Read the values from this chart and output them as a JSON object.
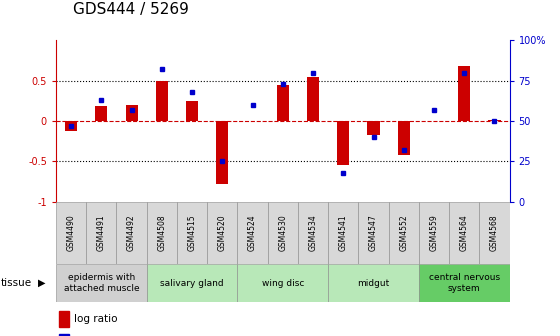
{
  "title": "GDS444 / 5269",
  "samples": [
    "GSM4490",
    "GSM4491",
    "GSM4492",
    "GSM4508",
    "GSM4515",
    "GSM4520",
    "GSM4524",
    "GSM4530",
    "GSM4534",
    "GSM4541",
    "GSM4547",
    "GSM4552",
    "GSM4559",
    "GSM4564",
    "GSM4568"
  ],
  "log_ratio": [
    -0.12,
    0.18,
    0.2,
    0.5,
    0.25,
    -0.78,
    0.0,
    0.45,
    0.55,
    -0.55,
    -0.18,
    -0.42,
    0.0,
    0.68,
    0.01
  ],
  "percentile": [
    47,
    63,
    57,
    82,
    68,
    25,
    60,
    73,
    80,
    18,
    40,
    32,
    57,
    80,
    50
  ],
  "tissue_groups": [
    {
      "label": "epidermis with\nattached muscle",
      "start": 0,
      "end": 2,
      "color": "#d0d0d0"
    },
    {
      "label": "salivary gland",
      "start": 3,
      "end": 5,
      "color": "#b8e8b8"
    },
    {
      "label": "wing disc",
      "start": 6,
      "end": 8,
      "color": "#b8e8b8"
    },
    {
      "label": "midgut",
      "start": 9,
      "end": 11,
      "color": "#b8e8b8"
    },
    {
      "label": "central nervous\nsystem",
      "start": 12,
      "end": 14,
      "color": "#66cc66"
    }
  ],
  "ylim": [
    -1,
    1
  ],
  "yticks_left": [
    -1,
    -0.5,
    0,
    0.5
  ],
  "ytick_labels_left": [
    "-1",
    "-0.5",
    "0",
    "0.5"
  ],
  "yticks_right": [
    0,
    25,
    50,
    75,
    100
  ],
  "ytick_labels_right": [
    "0",
    "25",
    "50",
    "75",
    "100%"
  ],
  "bar_color": "#cc0000",
  "dot_color": "#0000cc",
  "background_color": "#ffffff",
  "title_fontsize": 11,
  "tick_fontsize": 7,
  "sample_fontsize": 5.5,
  "tissue_fontsize": 6.5,
  "legend_fontsize": 7.5
}
